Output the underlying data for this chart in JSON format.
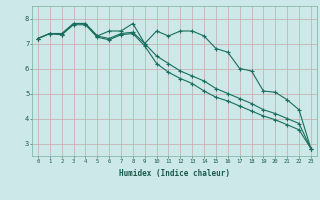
{
  "xlabel": "Humidex (Indice chaleur)",
  "bg_color": "#cce8e8",
  "line_color": "#1a6e5e",
  "grid_color": "#c8a8a8",
  "xlim": [
    -0.5,
    23.5
  ],
  "ylim": [
    2.5,
    8.5
  ],
  "yticks": [
    3,
    4,
    5,
    6,
    7,
    8
  ],
  "xticks": [
    0,
    1,
    2,
    3,
    4,
    5,
    6,
    7,
    8,
    9,
    10,
    11,
    12,
    13,
    14,
    15,
    16,
    17,
    18,
    19,
    20,
    21,
    22,
    23
  ],
  "line1_x": [
    0,
    1,
    2,
    3,
    4,
    5,
    6,
    7,
    8,
    9,
    10,
    11,
    12,
    13,
    14,
    15,
    16,
    17,
    18,
    19,
    20,
    21,
    22,
    23
  ],
  "line1_y": [
    7.2,
    7.4,
    7.4,
    7.8,
    7.8,
    7.3,
    7.5,
    7.5,
    7.8,
    7.0,
    7.5,
    7.3,
    7.5,
    7.5,
    7.3,
    6.8,
    6.65,
    6.0,
    5.9,
    5.1,
    5.05,
    4.75,
    4.35,
    2.8
  ],
  "line2_x": [
    0,
    1,
    2,
    3,
    4,
    5,
    6,
    7,
    8,
    9,
    10,
    11,
    12,
    13,
    14,
    15,
    16,
    17,
    18,
    19,
    20,
    21,
    22,
    23
  ],
  "line2_y": [
    7.2,
    7.4,
    7.35,
    7.8,
    7.8,
    7.3,
    7.2,
    7.4,
    7.45,
    7.0,
    6.5,
    6.2,
    5.9,
    5.7,
    5.5,
    5.2,
    5.0,
    4.8,
    4.6,
    4.35,
    4.2,
    4.0,
    3.8,
    2.8
  ],
  "line3_x": [
    0,
    1,
    2,
    3,
    4,
    5,
    6,
    7,
    8,
    9,
    10,
    11,
    12,
    13,
    14,
    15,
    16,
    17,
    18,
    19,
    20,
    21,
    22,
    23
  ],
  "line3_y": [
    7.2,
    7.4,
    7.35,
    7.75,
    7.75,
    7.25,
    7.15,
    7.35,
    7.4,
    6.9,
    6.2,
    5.85,
    5.6,
    5.4,
    5.1,
    4.85,
    4.7,
    4.5,
    4.3,
    4.1,
    3.95,
    3.75,
    3.55,
    2.8
  ]
}
